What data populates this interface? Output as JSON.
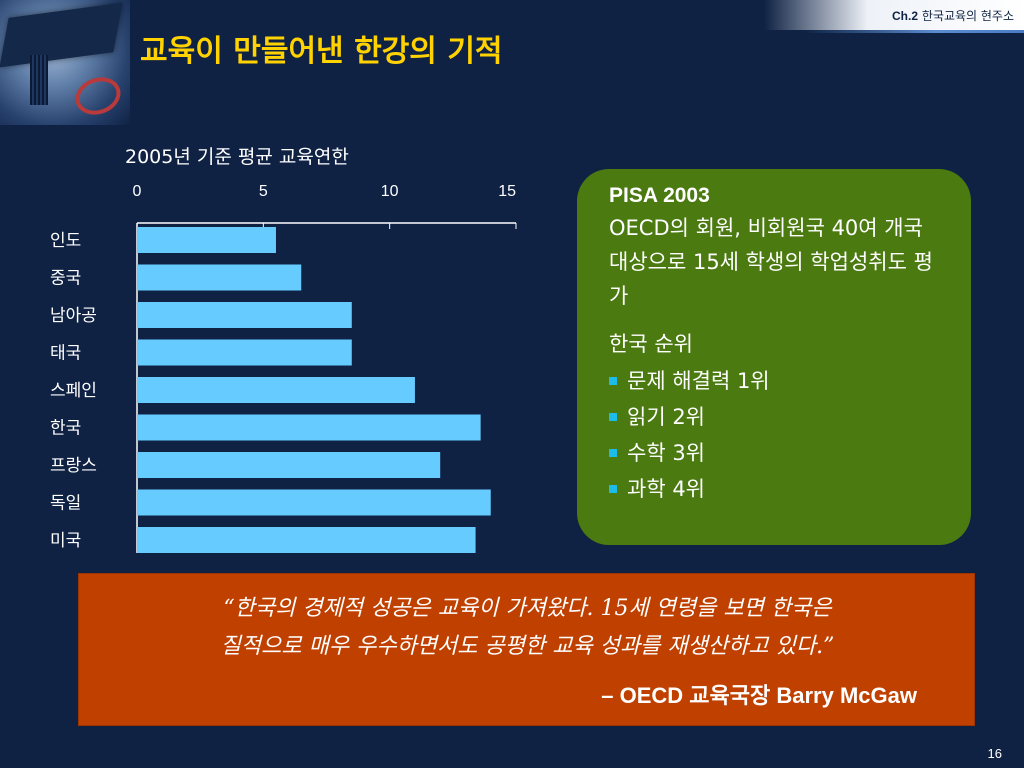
{
  "header": {
    "chapter_prefix": "Ch.2",
    "chapter_title": "한국교육의 현주소"
  },
  "slide": {
    "title": "교육이 만들어낸 한강의 기적",
    "page_number": "16"
  },
  "chart_data": {
    "type": "bar",
    "orientation": "horizontal",
    "title": "2005년 기준 평균 교육연한",
    "categories": [
      "인도",
      "중국",
      "남아공",
      "태국",
      "스페인",
      "한국",
      "프랑스",
      "독일",
      "미국"
    ],
    "values": [
      5.5,
      6.5,
      8.5,
      8.5,
      11.0,
      13.6,
      12.0,
      14.0,
      13.4
    ],
    "xlim": [
      0,
      15
    ],
    "x_ticks": [
      0,
      5,
      10,
      15
    ],
    "axis_position": "top",
    "bar_color": "#66ccff",
    "grid": false
  },
  "pisa": {
    "title": "PISA 2003",
    "description": "OECD의 회원, 비회원국 40여 개국 대상으로 15세 학생의 학업성취도 평가",
    "rank_heading": "한국 순위",
    "ranks": [
      "문제 해결력 1위",
      "읽기 2위",
      "수학 3위",
      "과학 4위"
    ],
    "box_color": "#4a7a10",
    "bullet_color": "#1fbbe8"
  },
  "quote": {
    "line1": "“한국의 경제적  성공은 교육이 가져왔다. 15세 연령을 보면 한국은",
    "line2": "질적으로 매우 우수하면서도 공평한 교육 성과를 재생산하고 있다.”",
    "author": "– OECD 교육국장 Barry McGaw",
    "box_color": "#c04000"
  },
  "colors": {
    "background": "#0f2244",
    "title": "#ffd200"
  }
}
